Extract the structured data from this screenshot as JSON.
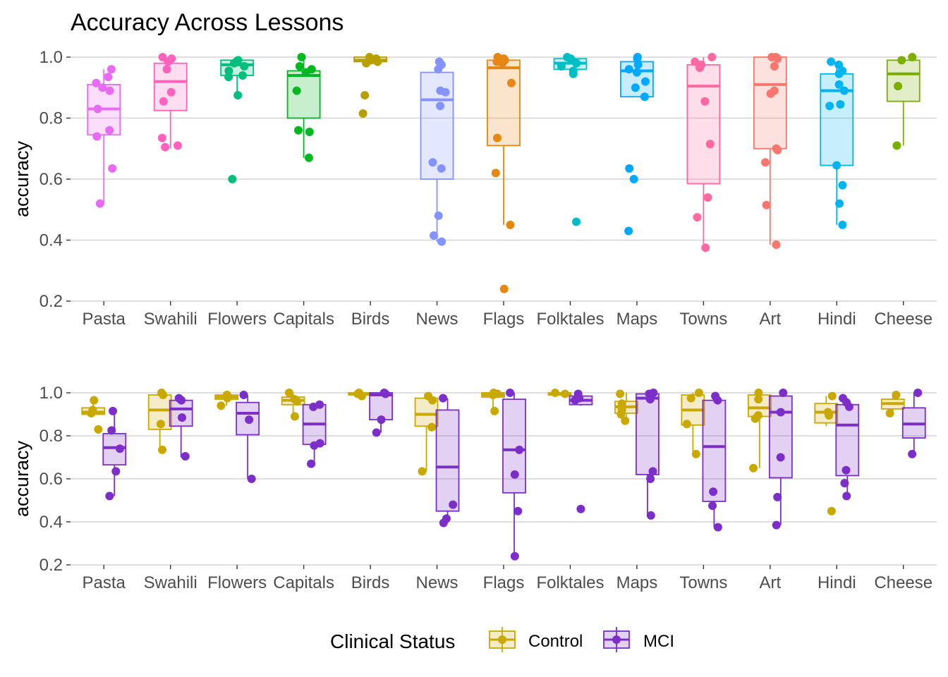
{
  "chart_data": [
    {
      "type": "box",
      "title": "Accuracy Across Lessons",
      "ylabel": "accuracy",
      "xlabel": "",
      "ylim": [
        0.2,
        1.0
      ],
      "yticks": [
        "0.2",
        "0.4",
        "0.6",
        "0.8",
        "1.0"
      ],
      "grid": true,
      "categories": [
        "Pasta",
        "Swahili",
        "Flowers",
        "Capitals",
        "Birds",
        "News",
        "Flags",
        "Folktales",
        "Maps",
        "Towns",
        "Art",
        "Hindi",
        "Cheese"
      ],
      "colors": [
        "#E76BF3",
        "#FF62BC",
        "#00BF7D",
        "#00B81F",
        "#B79F00",
        "#8494FF",
        "#E68613",
        "#00BFC4",
        "#00A9FF",
        "#FF68A1",
        "#F8766D",
        "#00B4EF",
        "#7CAE00"
      ],
      "boxes": [
        {
          "q1": 0.745,
          "median": 0.83,
          "q3": 0.91,
          "wmin": 0.52,
          "wmax": 0.96,
          "points": [
            0.96,
            0.935,
            0.915,
            0.9,
            0.89,
            0.83,
            0.76,
            0.74,
            0.635,
            0.52
          ]
        },
        {
          "q1": 0.825,
          "median": 0.92,
          "q3": 0.98,
          "wmin": 0.7,
          "wmax": 1.0,
          "points": [
            1.0,
            0.995,
            0.985,
            0.96,
            0.885,
            0.855,
            0.735,
            0.71,
            0.705
          ]
        },
        {
          "q1": 0.94,
          "median": 0.975,
          "q3": 0.99,
          "wmin": 0.87,
          "wmax": 1.0,
          "points": [
            0.99,
            0.985,
            0.98,
            0.97,
            0.955,
            0.94,
            0.935,
            0.875,
            0.6
          ]
        },
        {
          "q1": 0.8,
          "median": 0.94,
          "q3": 0.955,
          "wmin": 0.67,
          "wmax": 1.0,
          "points": [
            1.0,
            0.97,
            0.96,
            0.95,
            0.89,
            0.76,
            0.755,
            0.67
          ]
        },
        {
          "q1": 0.985,
          "median": 0.99,
          "q3": 1.0,
          "wmin": 0.98,
          "wmax": 1.0,
          "points": [
            1.0,
            0.995,
            0.99,
            0.985,
            0.98,
            0.875,
            0.815
          ]
        },
        {
          "q1": 0.6,
          "median": 0.86,
          "q3": 0.95,
          "wmin": 0.395,
          "wmax": 0.98,
          "points": [
            0.985,
            0.975,
            0.96,
            0.89,
            0.885,
            0.84,
            0.655,
            0.635,
            0.48,
            0.415,
            0.395
          ]
        },
        {
          "q1": 0.71,
          "median": 0.965,
          "q3": 0.99,
          "wmin": 0.45,
          "wmax": 1.0,
          "points": [
            1.0,
            0.995,
            0.99,
            0.985,
            0.98,
            0.915,
            0.735,
            0.62,
            0.45,
            0.24
          ]
        },
        {
          "q1": 0.96,
          "median": 0.98,
          "q3": 0.995,
          "wmin": 0.94,
          "wmax": 1.0,
          "points": [
            1.0,
            0.995,
            0.99,
            0.98,
            0.97,
            0.955,
            0.945,
            0.46
          ]
        },
        {
          "q1": 0.87,
          "median": 0.955,
          "q3": 0.985,
          "wmin": 0.87,
          "wmax": 1.0,
          "points": [
            1.0,
            0.995,
            0.975,
            0.96,
            0.95,
            0.92,
            0.9,
            0.87,
            0.635,
            0.6,
            0.43
          ]
        },
        {
          "q1": 0.585,
          "median": 0.905,
          "q3": 0.975,
          "wmin": 0.375,
          "wmax": 1.0,
          "points": [
            1.0,
            0.985,
            0.975,
            0.965,
            0.855,
            0.715,
            0.54,
            0.475,
            0.375
          ]
        },
        {
          "q1": 0.7,
          "median": 0.91,
          "q3": 1.0,
          "wmin": 0.385,
          "wmax": 1.0,
          "points": [
            1.0,
            1.0,
            0.995,
            0.97,
            0.89,
            0.88,
            0.7,
            0.695,
            0.655,
            0.515,
            0.385
          ]
        },
        {
          "q1": 0.645,
          "median": 0.89,
          "q3": 0.945,
          "wmin": 0.45,
          "wmax": 0.985,
          "points": [
            0.985,
            0.975,
            0.955,
            0.945,
            0.91,
            0.89,
            0.845,
            0.84,
            0.645,
            0.58,
            0.52,
            0.45
          ]
        },
        {
          "q1": 0.855,
          "median": 0.945,
          "q3": 0.99,
          "wmin": 0.71,
          "wmax": 1.0,
          "points": [
            1.0,
            0.99,
            0.905,
            0.71
          ]
        }
      ]
    },
    {
      "type": "box",
      "title": "",
      "ylabel": "accuracy",
      "xlabel": "",
      "ylim": [
        0.2,
        1.0
      ],
      "yticks": [
        "0.2",
        "0.4",
        "0.6",
        "0.8",
        "1.0"
      ],
      "grid": true,
      "categories": [
        "Pasta",
        "Swahili",
        "Flowers",
        "Capitals",
        "Birds",
        "News",
        "Flags",
        "Folktales",
        "Maps",
        "Towns",
        "Art",
        "Hindi",
        "Cheese"
      ],
      "series": [
        {
          "name": "Control",
          "color": "#C9A900",
          "boxes": [
            {
              "q1": 0.9,
              "median": 0.91,
              "q3": 0.93,
              "wmin": 0.9,
              "wmax": 0.96,
              "points": [
                0.965,
                0.92,
                0.905,
                0.83
              ]
            },
            {
              "q1": 0.83,
              "median": 0.92,
              "q3": 0.99,
              "wmin": 0.735,
              "wmax": 1.0,
              "points": [
                1.0,
                0.99,
                0.855,
                0.735
              ]
            },
            {
              "q1": 0.97,
              "median": 0.98,
              "q3": 0.99,
              "wmin": 0.94,
              "wmax": 1.0,
              "points": [
                0.99,
                0.985,
                0.975,
                0.94
              ]
            },
            {
              "q1": 0.945,
              "median": 0.965,
              "q3": 0.98,
              "wmin": 0.89,
              "wmax": 1.0,
              "points": [
                1.0,
                0.97,
                0.96,
                0.89
              ]
            },
            {
              "q1": 0.99,
              "median": 0.995,
              "q3": 1.0,
              "wmin": 0.985,
              "wmax": 1.0,
              "points": [
                1.0,
                0.995,
                0.985
              ]
            },
            {
              "q1": 0.845,
              "median": 0.9,
              "q3": 0.975,
              "wmin": 0.635,
              "wmax": 0.985,
              "points": [
                0.985,
                0.965,
                0.84,
                0.635
              ]
            },
            {
              "q1": 0.98,
              "median": 0.99,
              "q3": 1.0,
              "wmin": 0.915,
              "wmax": 1.0,
              "points": [
                1.0,
                0.995,
                0.99,
                0.915
              ]
            },
            {
              "q1": 0.99,
              "median": 0.995,
              "q3": 1.0,
              "wmin": 0.99,
              "wmax": 1.0,
              "points": [
                1.0,
                0.995
              ]
            },
            {
              "q1": 0.905,
              "median": 0.935,
              "q3": 0.96,
              "wmin": 0.87,
              "wmax": 1.0,
              "points": [
                0.995,
                0.95,
                0.92,
                0.9,
                0.87
              ]
            },
            {
              "q1": 0.85,
              "median": 0.92,
              "q3": 0.99,
              "wmin": 0.715,
              "wmax": 1.0,
              "points": [
                1.0,
                0.975,
                0.855,
                0.715
              ]
            },
            {
              "q1": 0.89,
              "median": 0.93,
              "q3": 0.99,
              "wmin": 0.65,
              "wmax": 1.0,
              "points": [
                1.0,
                0.97,
                0.895,
                0.88,
                0.65
              ]
            },
            {
              "q1": 0.86,
              "median": 0.91,
              "q3": 0.95,
              "wmin": 0.845,
              "wmax": 0.985,
              "points": [
                0.985,
                0.91,
                0.895,
                0.45
              ]
            },
            {
              "q1": 0.925,
              "median": 0.95,
              "q3": 0.97,
              "wmin": 0.905,
              "wmax": 0.99,
              "points": [
                0.99,
                0.905
              ]
            }
          ]
        },
        {
          "name": "MCI",
          "color": "#7B2FC8",
          "boxes": [
            {
              "q1": 0.665,
              "median": 0.745,
              "q3": 0.81,
              "wmin": 0.52,
              "wmax": 0.915,
              "points": [
                0.915,
                0.825,
                0.74,
                0.635,
                0.52
              ]
            },
            {
              "q1": 0.845,
              "median": 0.925,
              "q3": 0.965,
              "wmin": 0.7,
              "wmax": 0.975,
              "points": [
                0.975,
                0.965,
                0.885,
                0.705
              ]
            },
            {
              "q1": 0.805,
              "median": 0.905,
              "q3": 0.955,
              "wmin": 0.6,
              "wmax": 0.99,
              "points": [
                0.99,
                0.875,
                0.6
              ]
            },
            {
              "q1": 0.76,
              "median": 0.855,
              "q3": 0.945,
              "wmin": 0.67,
              "wmax": 0.945,
              "points": [
                0.945,
                0.935,
                0.765,
                0.755,
                0.67
              ]
            },
            {
              "q1": 0.875,
              "median": 0.99,
              "q3": 1.0,
              "wmin": 0.815,
              "wmax": 1.0,
              "points": [
                1.0,
                0.995,
                0.875,
                0.815
              ]
            },
            {
              "q1": 0.45,
              "median": 0.655,
              "q3": 0.92,
              "wmin": 0.395,
              "wmax": 0.975,
              "points": [
                0.975,
                0.48,
                0.415,
                0.395
              ]
            },
            {
              "q1": 0.535,
              "median": 0.735,
              "q3": 0.97,
              "wmin": 0.24,
              "wmax": 1.0,
              "points": [
                1.0,
                0.735,
                0.62,
                0.45,
                0.24
              ]
            },
            {
              "q1": 0.945,
              "median": 0.965,
              "q3": 0.985,
              "wmin": 0.94,
              "wmax": 1.0,
              "points": [
                0.995,
                0.975,
                0.965,
                0.46
              ]
            },
            {
              "q1": 0.62,
              "median": 0.975,
              "q3": 0.995,
              "wmin": 0.43,
              "wmax": 1.0,
              "points": [
                1.0,
                0.995,
                0.97,
                0.635,
                0.6,
                0.43
              ]
            },
            {
              "q1": 0.495,
              "median": 0.75,
              "q3": 0.965,
              "wmin": 0.375,
              "wmax": 0.985,
              "points": [
                0.985,
                0.965,
                0.54,
                0.475,
                0.375
              ]
            },
            {
              "q1": 0.605,
              "median": 0.91,
              "q3": 0.985,
              "wmin": 0.385,
              "wmax": 1.0,
              "points": [
                1.0,
                0.91,
                0.7,
                0.515,
                0.385
              ]
            },
            {
              "q1": 0.615,
              "median": 0.85,
              "q3": 0.945,
              "wmin": 0.52,
              "wmax": 0.975,
              "points": [
                0.975,
                0.955,
                0.935,
                0.64,
                0.58,
                0.52
              ]
            },
            {
              "q1": 0.79,
              "median": 0.855,
              "q3": 0.93,
              "wmin": 0.715,
              "wmax": 1.0,
              "points": [
                1.0,
                0.715
              ]
            }
          ]
        }
      ],
      "legend": {
        "title": "Clinical Status",
        "position": "bottom"
      }
    }
  ]
}
